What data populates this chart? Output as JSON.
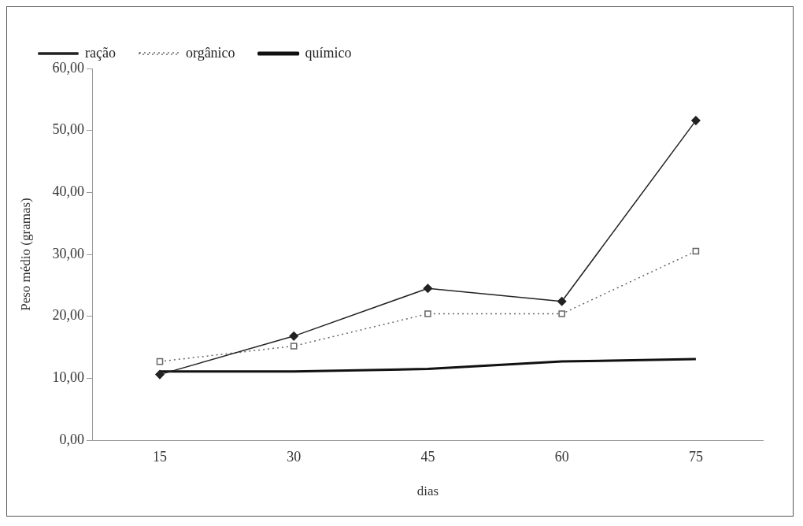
{
  "chart_data": {
    "type": "line",
    "xlabel": "dias",
    "ylabel": "Peso médio (gramas)",
    "categories": [
      "15",
      "30",
      "45",
      "60",
      "75"
    ],
    "ylim": [
      0,
      60
    ],
    "yticks": [
      {
        "value": 0,
        "label": "0,00"
      },
      {
        "value": 10,
        "label": "10,00"
      },
      {
        "value": 20,
        "label": "20,00"
      },
      {
        "value": 30,
        "label": "30,00"
      },
      {
        "value": 40,
        "label": "40,00"
      },
      {
        "value": 50,
        "label": "50,00"
      },
      {
        "value": 60,
        "label": "60,00"
      }
    ],
    "grid": false,
    "legend": "top left",
    "series": [
      {
        "name": "ração",
        "color": "#222222",
        "marker": "diamond",
        "line_style": "solid",
        "values": [
          10.6,
          16.8,
          24.5,
          22.4,
          51.6
        ]
      },
      {
        "name": "orgânico",
        "color": "#666666",
        "marker": "square",
        "line_style": "dotted",
        "values": [
          12.7,
          15.2,
          20.4,
          20.4,
          30.5
        ]
      },
      {
        "name": "químico",
        "color": "#111111",
        "marker": "none",
        "line_style": "solid",
        "values": [
          11.1,
          11.1,
          11.5,
          12.7,
          13.1
        ]
      }
    ]
  }
}
